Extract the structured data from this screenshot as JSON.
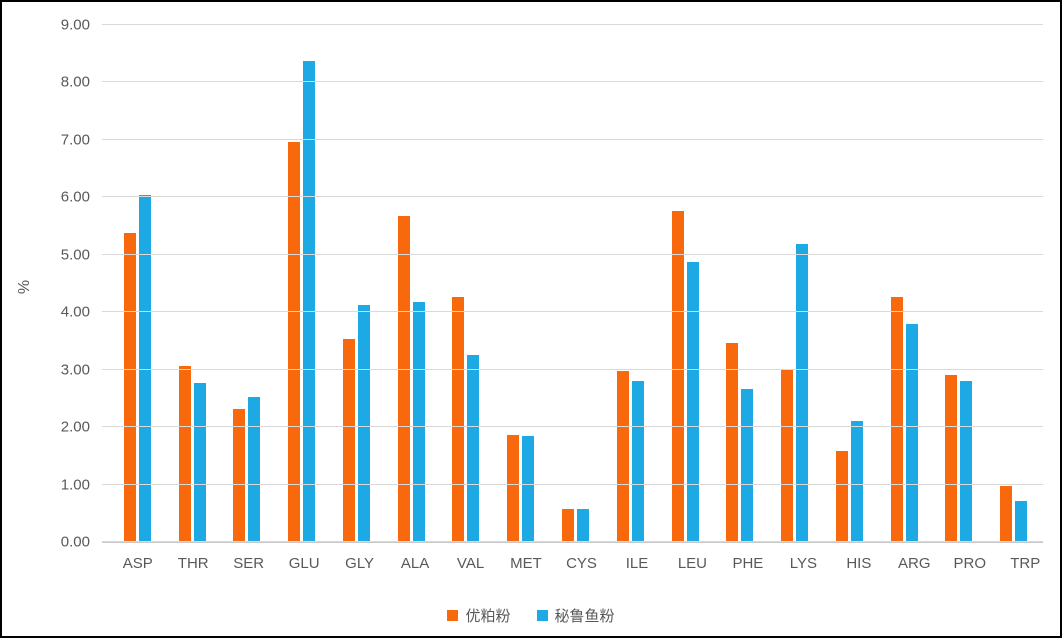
{
  "chart": {
    "background": "#ffffff",
    "border_color": "#000000",
    "text_color": "#595959",
    "gridline_color": "#d9d9d9"
  },
  "chart_data": {
    "type": "bar",
    "title": "",
    "xlabel": "",
    "ylabel": "%",
    "ylim": [
      0,
      9
    ],
    "ytick_step": 1,
    "ytick_decimals": 2,
    "grid": true,
    "legend_position": "bottom",
    "categories": [
      "ASP",
      "THR",
      "SER",
      "GLU",
      "GLY",
      "ALA",
      "VAL",
      "MET",
      "CYS",
      "ILE",
      "LEU",
      "PHE",
      "LYS",
      "HIS",
      "ARG",
      "PRO",
      "TRP"
    ],
    "series": [
      {
        "name": "优粕粉",
        "color": "#f8690e",
        "values": [
          5.38,
          3.06,
          2.31,
          6.97,
          3.54,
          5.68,
          4.26,
          1.87,
          0.58,
          2.98,
          5.76,
          3.47,
          3.02,
          1.58,
          4.26,
          2.91,
          0.97
        ]
      },
      {
        "name": "秘鲁鱼粉",
        "color": "#1ca9e4",
        "values": [
          6.04,
          2.76,
          2.52,
          8.37,
          4.13,
          4.18,
          3.26,
          1.85,
          0.57,
          2.8,
          4.87,
          2.66,
          5.18,
          2.1,
          3.79,
          2.8,
          0.72
        ]
      }
    ]
  }
}
